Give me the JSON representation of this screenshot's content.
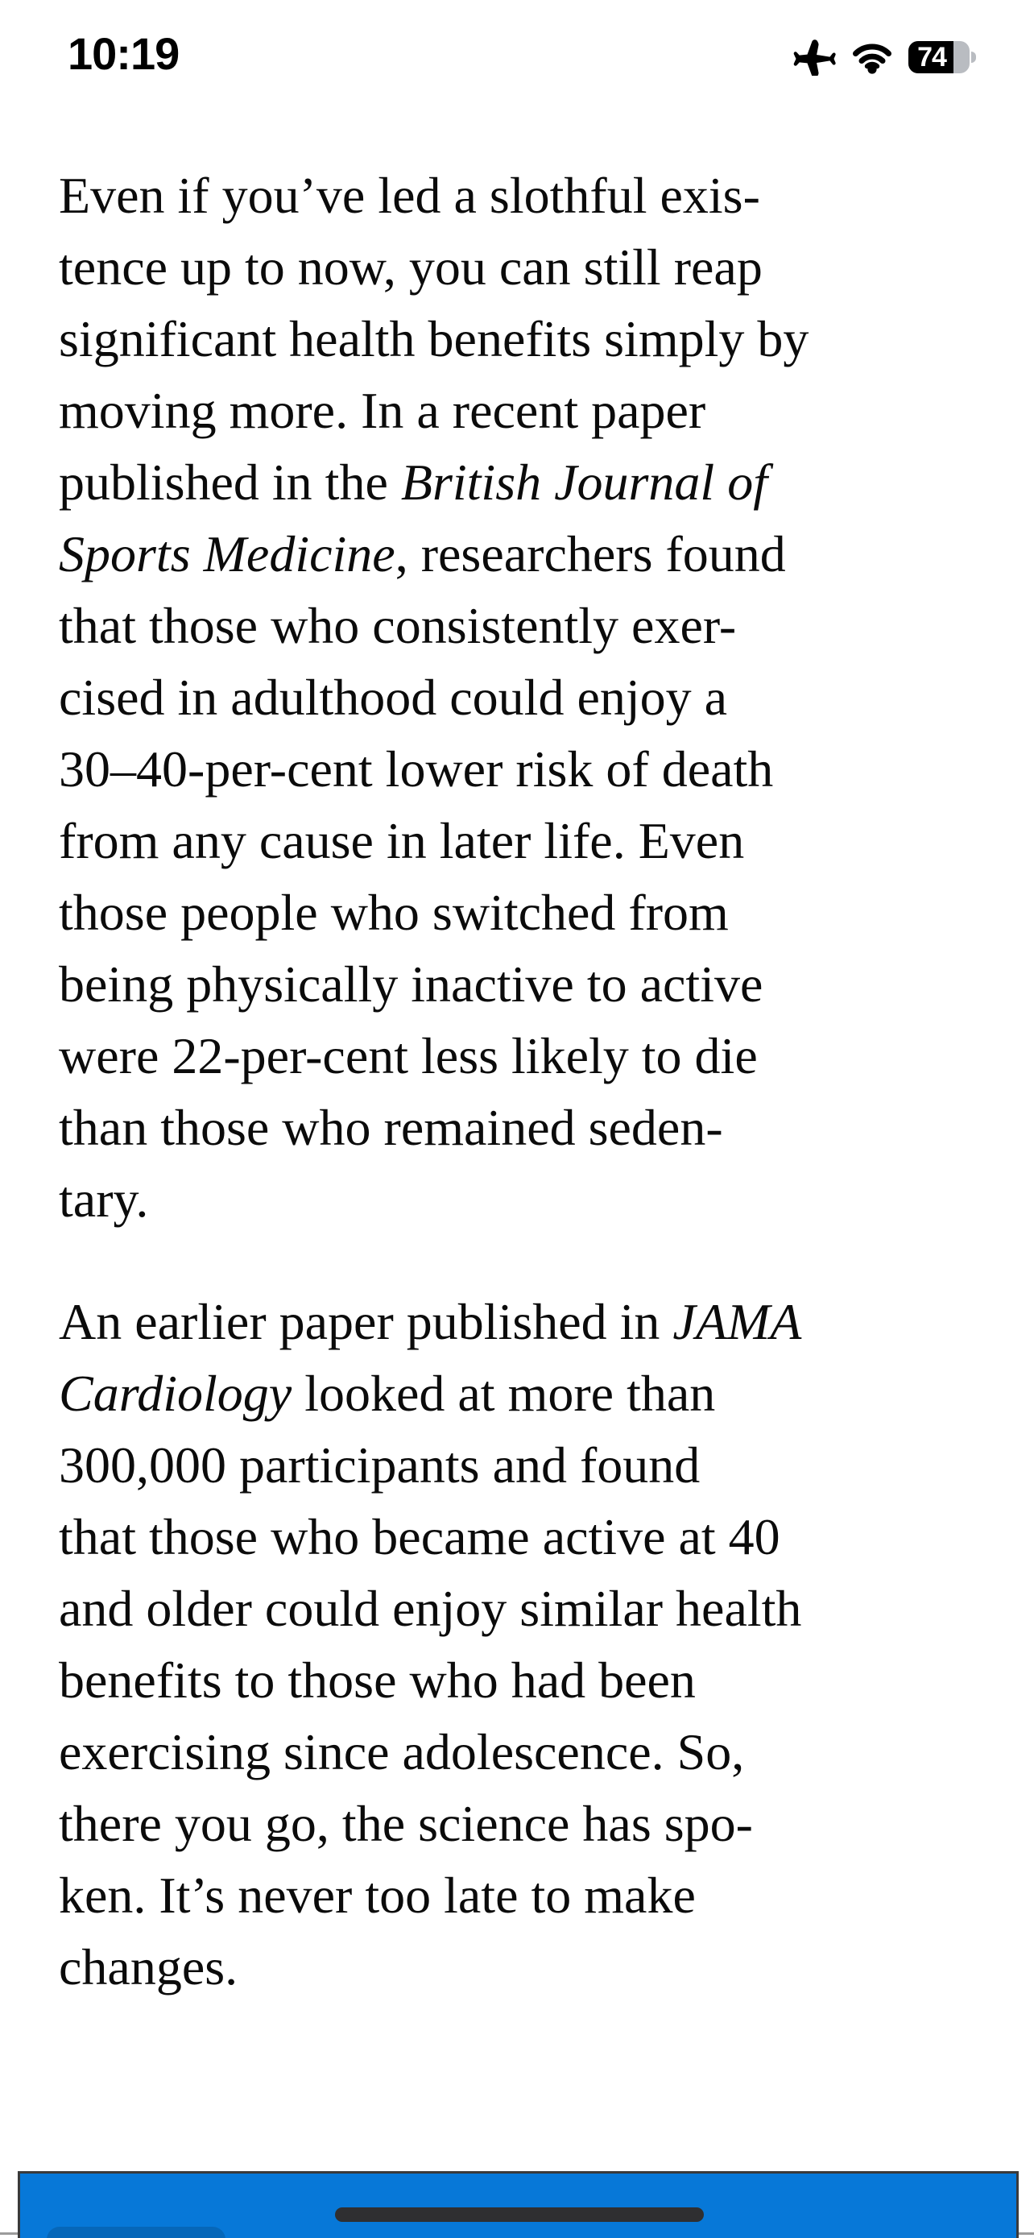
{
  "status_bar": {
    "time": "10:19",
    "battery_percent": "74",
    "battery_fill_ratio": 0.74,
    "icons": [
      "airplane-mode",
      "wifi",
      "battery"
    ]
  },
  "article": {
    "paragraphs": [
      {
        "lines": [
          [
            {
              "text": "Even if you’ve led a slothful exis-"
            }
          ],
          [
            {
              "text": "tence up to now, you can still reap"
            }
          ],
          [
            {
              "text": "significant health benefits simply by"
            }
          ],
          [
            {
              "text": "moving more. In a recent paper"
            }
          ],
          [
            {
              "text": "published in the "
            },
            {
              "text": "British Journal of",
              "italic": true
            }
          ],
          [
            {
              "text": "Sports Medicine",
              "italic": true
            },
            {
              "text": ", researchers found"
            }
          ],
          [
            {
              "text": "that those who consistently exer-"
            }
          ],
          [
            {
              "text": "cised in adulthood could enjoy a"
            }
          ],
          [
            {
              "text": "30–40-per-cent lower risk of death"
            }
          ],
          [
            {
              "text": "from any cause in later life. Even"
            }
          ],
          [
            {
              "text": "those people who switched from"
            }
          ],
          [
            {
              "text": "being physically inactive to active"
            }
          ],
          [
            {
              "text": "were 22-per-cent less likely to die"
            }
          ],
          [
            {
              "text": "than those who remained seden-"
            }
          ],
          [
            {
              "text": "tary."
            }
          ]
        ]
      },
      {
        "lines": [
          [
            {
              "text": "An earlier paper published in "
            },
            {
              "text": "JAMA",
              "italic": true
            }
          ],
          [
            {
              "text": "Cardiology",
              "italic": true
            },
            {
              "text": " looked at more than"
            }
          ],
          [
            {
              "text": "300,000 participants and found"
            }
          ],
          [
            {
              "text": "that those who became active at 40"
            }
          ],
          [
            {
              "text": "and older could enjoy similar health"
            }
          ],
          [
            {
              "text": "benefits to those who had been"
            }
          ],
          [
            {
              "text": "exercising since adolescence. So,"
            }
          ],
          [
            {
              "text": "there you go, the science has spo-"
            }
          ],
          [
            {
              "text": "ken. It’s never too late to make"
            }
          ],
          [
            {
              "text": "changes."
            }
          ]
        ]
      }
    ]
  },
  "bottom": {
    "colors": {
      "banner_blue": "#0778d8",
      "home_indicator": "#2f2f31",
      "hairline": "#9b9b9b"
    }
  }
}
